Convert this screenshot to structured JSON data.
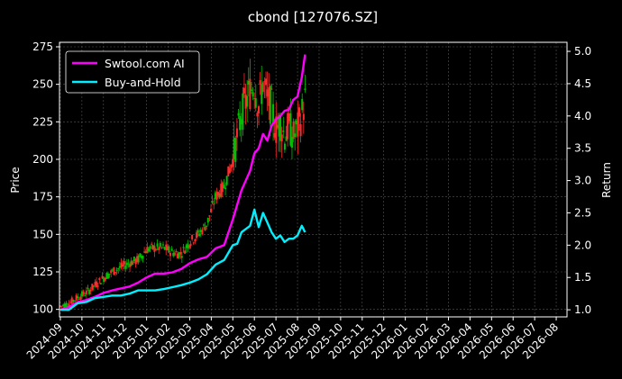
{
  "chart_data": {
    "type": "line",
    "title": "cbond [127076.SZ]",
    "ylabel": "Price",
    "y2label": "Return",
    "background": "#000000",
    "grid": true,
    "legend_position": "upper-left",
    "x_tick_labels": [
      "2024-09",
      "2024-10",
      "2024-11",
      "2024-12",
      "2025-01",
      "2025-02",
      "2025-03",
      "2025-04",
      "2025-05",
      "2025-06",
      "2025-07",
      "2025-08",
      "2025-09",
      "2025-10",
      "2025-11",
      "2025-12",
      "2026-01",
      "2026-02",
      "2026-03",
      "2026-04",
      "2026-05",
      "2026-06",
      "2026-07",
      "2026-08"
    ],
    "y_ticks": [
      100,
      125,
      150,
      175,
      200,
      225,
      250,
      275
    ],
    "y_tick_labels": [
      "100",
      "125",
      "150",
      "175",
      "200",
      "225",
      "250",
      "275"
    ],
    "ylim": [
      95,
      278
    ],
    "y2_ticks": [
      1.0,
      1.5,
      2.0,
      2.5,
      3.0,
      3.5,
      4.0,
      4.5,
      5.0
    ],
    "y2_tick_labels": [
      "1.0",
      "1.5",
      "2.0",
      "2.5",
      "3.0",
      "3.5",
      "4.0",
      "4.5",
      "5.0"
    ],
    "y2lim": [
      0.89,
      5.14
    ],
    "xlim_month_index": [
      -0.04,
      23.5
    ],
    "candle_colors": {
      "up": "#ff2a2a",
      "down": "#00c000"
    },
    "series": [
      {
        "name": "Swtool.com AI",
        "color": "#ff00ff",
        "axis": "right",
        "x": [
          0.0,
          0.4,
          0.8,
          1.2,
          1.6,
          2.0,
          2.4,
          2.8,
          3.2,
          3.6,
          4.0,
          4.4,
          4.8,
          5.2,
          5.6,
          6.0,
          6.4,
          6.8,
          7.2,
          7.6,
          8.0,
          8.4,
          8.8,
          9.0,
          9.2,
          9.4,
          9.6,
          9.8,
          10.0,
          10.2,
          10.4,
          10.6,
          10.8,
          11.0,
          11.2,
          11.35
        ],
        "values": [
          1.0,
          1.04,
          1.12,
          1.15,
          1.2,
          1.26,
          1.3,
          1.33,
          1.36,
          1.42,
          1.5,
          1.56,
          1.56,
          1.58,
          1.63,
          1.72,
          1.78,
          1.82,
          1.95,
          2.0,
          2.4,
          2.85,
          3.15,
          3.42,
          3.5,
          3.72,
          3.62,
          3.85,
          3.95,
          4.0,
          4.08,
          4.1,
          4.25,
          4.3,
          4.6,
          4.95
        ]
      },
      {
        "name": "Buy-and-Hold",
        "color": "#00f0ff",
        "axis": "right",
        "x": [
          0.0,
          0.4,
          0.8,
          1.2,
          1.6,
          2.0,
          2.4,
          2.8,
          3.2,
          3.6,
          4.0,
          4.4,
          4.8,
          5.2,
          5.6,
          6.0,
          6.4,
          6.8,
          7.2,
          7.6,
          8.0,
          8.2,
          8.4,
          8.6,
          8.8,
          9.0,
          9.2,
          9.4,
          9.6,
          9.8,
          10.0,
          10.2,
          10.4,
          10.6,
          10.8,
          11.0,
          11.2,
          11.35
        ],
        "values": [
          1.0,
          1.0,
          1.1,
          1.12,
          1.18,
          1.2,
          1.22,
          1.22,
          1.25,
          1.3,
          1.3,
          1.3,
          1.32,
          1.35,
          1.38,
          1.42,
          1.47,
          1.55,
          1.7,
          1.77,
          2.0,
          2.02,
          2.2,
          2.25,
          2.3,
          2.55,
          2.28,
          2.5,
          2.35,
          2.2,
          2.1,
          2.15,
          2.05,
          2.1,
          2.1,
          2.15,
          2.3,
          2.2
        ]
      }
    ],
    "price_series": {
      "name": "Price",
      "axis": "left",
      "x": [
        0.0,
        0.4,
        0.8,
        1.2,
        1.6,
        2.0,
        2.4,
        2.8,
        3.2,
        3.6,
        4.0,
        4.4,
        4.8,
        5.2,
        5.6,
        6.0,
        6.4,
        6.8,
        7.2,
        7.6,
        8.0,
        8.2,
        8.4,
        8.6,
        8.8,
        9.0,
        9.2,
        9.4,
        9.6,
        9.8,
        10.0,
        10.2,
        10.4,
        10.6,
        10.8,
        11.0,
        11.2,
        11.35
      ],
      "values": [
        102,
        104,
        108,
        111,
        116,
        121,
        125,
        128,
        131,
        133,
        140,
        141,
        141,
        138,
        137,
        145,
        150,
        157,
        175,
        182,
        200,
        215,
        230,
        238,
        246,
        250,
        235,
        252,
        240,
        235,
        220,
        225,
        215,
        222,
        215,
        220,
        230,
        240
      ]
    }
  }
}
